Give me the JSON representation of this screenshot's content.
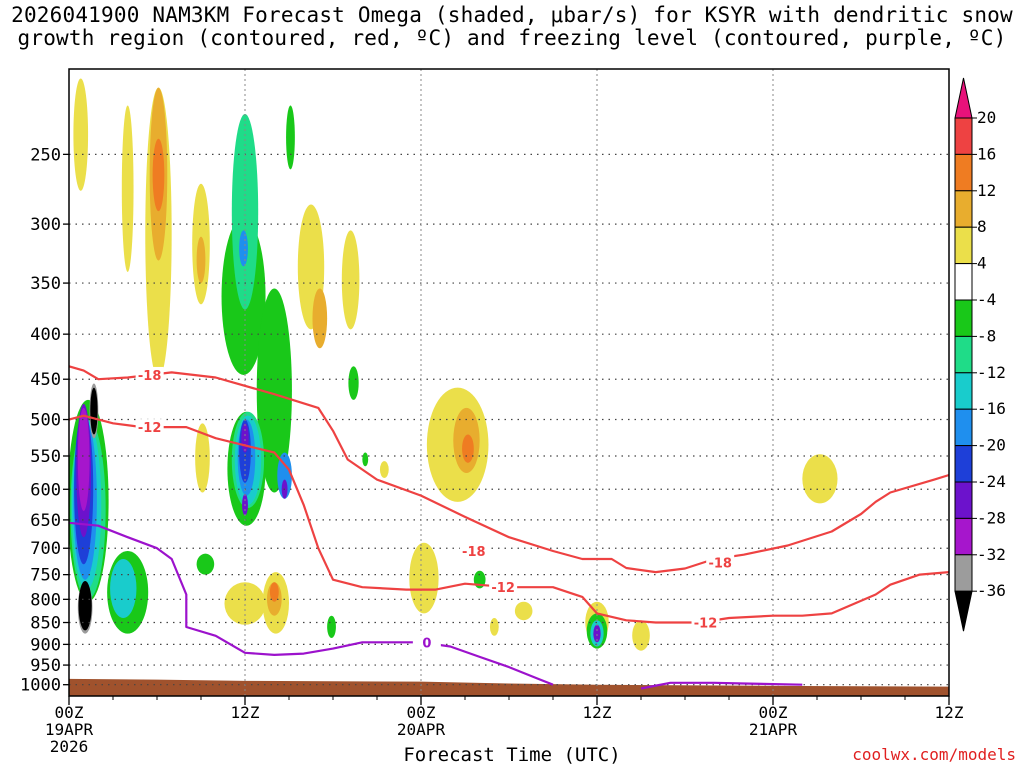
{
  "title": {
    "line1": "2026041900 NAM3KM Forecast Omega (shaded, μbar/s) for KSYR with dendritic snow",
    "line2": "growth region (contoured, red, ºC) and freezing level (contoured, purple, ºC)"
  },
  "credit": "coolwx.com/models",
  "chart_data": {
    "type": "heatmap",
    "xlabel": "Forecast Time (UTC)",
    "ylabel": "",
    "x_axis": {
      "unit": "forecast hours from 2026-04-19 00Z",
      "range": [
        0,
        60
      ],
      "ticks": [
        {
          "h": 0,
          "label1": "00Z",
          "label2": "19APR",
          "label3": "2026"
        },
        {
          "h": 12,
          "label1": "12Z",
          "label2": "",
          "label3": ""
        },
        {
          "h": 24,
          "label1": "00Z",
          "label2": "20APR",
          "label3": ""
        },
        {
          "h": 36,
          "label1": "12Z",
          "label2": "",
          "label3": ""
        },
        {
          "h": 48,
          "label1": "00Z",
          "label2": "21APR",
          "label3": ""
        },
        {
          "h": 60,
          "label1": "12Z",
          "label2": "",
          "label3": ""
        }
      ],
      "minor_grid_hours": [
        3,
        6,
        9,
        15,
        18,
        21,
        27,
        30,
        33,
        39,
        42,
        45,
        51,
        54,
        57
      ]
    },
    "y_axis": {
      "unit": "hPa",
      "scale": "log-pressure",
      "range": [
        1030,
        200
      ],
      "ticks": [
        250,
        300,
        350,
        400,
        450,
        500,
        550,
        600,
        650,
        700,
        750,
        800,
        850,
        900,
        950,
        1000
      ]
    },
    "colorbar": {
      "ticks": [
        "20",
        "16",
        "12",
        "8",
        "4",
        "-4",
        "-8",
        "-12",
        "-16",
        "-20",
        "-24",
        "-28",
        "-32",
        "-36"
      ],
      "colors": [
        "#e8127a",
        "#ee4242",
        "#ef7c22",
        "#e8ad2e",
        "#ebdf4a",
        "#ffffff",
        "#19c819",
        "#1fdc88",
        "#19cccc",
        "#1f8fee",
        "#1e3fd8",
        "#6c12cc",
        "#a616cc",
        "#9c9c9c",
        "#000000"
      ]
    },
    "omega_features": [
      {
        "level": "4",
        "color": "#ebdf4a",
        "h": 0.8,
        "p": 240,
        "rx": 0.5,
        "rp": 70
      },
      {
        "level": "4",
        "color": "#ebdf4a",
        "h": 4.0,
        "p": 280,
        "rx": 0.4,
        "rp": 120
      },
      {
        "level": "4",
        "color": "#ebdf4a",
        "h": 6.1,
        "p": 330,
        "rx": 0.9,
        "rp": 240
      },
      {
        "level": "8",
        "color": "#e8ad2e",
        "h": 6.1,
        "p": 270,
        "rx": 0.6,
        "rp": 120
      },
      {
        "level": "12",
        "color": "#ef7c22",
        "h": 6.1,
        "p": 265,
        "rx": 0.4,
        "rp": 50
      },
      {
        "level": "4",
        "color": "#ebdf4a",
        "h": 9.0,
        "p": 320,
        "rx": 0.6,
        "rp": 100
      },
      {
        "level": "8",
        "color": "#e8ad2e",
        "h": 9.0,
        "p": 330,
        "rx": 0.3,
        "rp": 40
      },
      {
        "level": "4",
        "color": "#ebdf4a",
        "h": 9.1,
        "p": 555,
        "rx": 0.5,
        "rp": 100
      },
      {
        "level": "4",
        "color": "#ebdf4a",
        "h": 16.5,
        "p": 340,
        "rx": 0.9,
        "rp": 110
      },
      {
        "level": "8",
        "color": "#e8ad2e",
        "h": 17.1,
        "p": 385,
        "rx": 0.5,
        "rp": 60
      },
      {
        "level": "4",
        "color": "#ebdf4a",
        "h": 19.2,
        "p": 350,
        "rx": 0.6,
        "rp": 90
      },
      {
        "level": "-4",
        "color": "#19c819",
        "h": 15.1,
        "p": 240,
        "rx": 0.3,
        "rp": 40
      },
      {
        "level": "-4",
        "color": "#19c819",
        "h": 11.9,
        "p": 370,
        "rx": 1.5,
        "rp": 150
      },
      {
        "level": "-4",
        "color": "#19c819",
        "h": 14.0,
        "p": 480,
        "rx": 1.2,
        "rp": 250
      },
      {
        "level": "-8",
        "color": "#1fdc88",
        "h": 12.0,
        "p": 300,
        "rx": 0.9,
        "rp": 150
      },
      {
        "level": "-16",
        "color": "#1f8fee",
        "h": 11.9,
        "p": 320,
        "rx": 0.3,
        "rp": 30
      },
      {
        "level": "-4",
        "color": "#19c819",
        "h": 12.1,
        "p": 575,
        "rx": 1.3,
        "rp": 170
      },
      {
        "level": "-8",
        "color": "#1fdc88",
        "h": 12.2,
        "p": 560,
        "rx": 1.1,
        "rp": 140
      },
      {
        "level": "-12",
        "color": "#19cccc",
        "h": 12.2,
        "p": 560,
        "rx": 0.9,
        "rp": 130
      },
      {
        "level": "-16",
        "color": "#1f8fee",
        "h": 12.1,
        "p": 555,
        "rx": 0.6,
        "rp": 110
      },
      {
        "level": "-20",
        "color": "#1e3fd8",
        "h": 12.0,
        "p": 545,
        "rx": 0.4,
        "rp": 90
      },
      {
        "level": "-24",
        "color": "#6c12cc",
        "h": 12.0,
        "p": 525,
        "rx": 0.25,
        "rp": 40
      },
      {
        "level": "-24",
        "color": "#6c12cc",
        "h": 12.0,
        "p": 625,
        "rx": 0.2,
        "rp": 35
      },
      {
        "level": "-16",
        "color": "#1f8fee",
        "h": 14.7,
        "p": 580,
        "rx": 0.5,
        "rp": 70
      },
      {
        "level": "-24",
        "color": "#6c12cc",
        "h": 14.7,
        "p": 600,
        "rx": 0.2,
        "rp": 30
      },
      {
        "level": "-4",
        "color": "#19c819",
        "h": 1.3,
        "p": 640,
        "rx": 1.4,
        "rp": 330
      },
      {
        "level": "-8",
        "color": "#1fdc88",
        "h": 1.3,
        "p": 650,
        "rx": 1.2,
        "rp": 300
      },
      {
        "level": "-12",
        "color": "#19cccc",
        "h": 1.2,
        "p": 640,
        "rx": 1.0,
        "rp": 280
      },
      {
        "level": "-16",
        "color": "#1f8fee",
        "h": 1.1,
        "p": 630,
        "rx": 0.8,
        "rp": 260
      },
      {
        "level": "-20",
        "color": "#1e3fd8",
        "h": 1.0,
        "p": 610,
        "rx": 0.65,
        "rp": 240
      },
      {
        "level": "-24",
        "color": "#6c12cc",
        "h": 1.0,
        "p": 580,
        "rx": 0.5,
        "rp": 200
      },
      {
        "level": "-28",
        "color": "#a616cc",
        "h": 1.0,
        "p": 560,
        "rx": 0.4,
        "rp": 150
      },
      {
        "level": "-32",
        "color": "#9c9c9c",
        "h": 1.7,
        "p": 490,
        "rx": 0.3,
        "rp": 70
      },
      {
        "level": "-36",
        "color": "#000000",
        "h": 1.7,
        "p": 490,
        "rx": 0.25,
        "rp": 60
      },
      {
        "level": "-32",
        "color": "#9c9c9c",
        "h": 1.1,
        "p": 820,
        "rx": 0.5,
        "rp": 110
      },
      {
        "level": "-36",
        "color": "#000000",
        "h": 1.1,
        "p": 815,
        "rx": 0.45,
        "rp": 105
      },
      {
        "level": "-4",
        "color": "#19c819",
        "h": 4.0,
        "p": 790,
        "rx": 1.4,
        "rp": 170
      },
      {
        "level": "-12",
        "color": "#19cccc",
        "h": 3.7,
        "p": 780,
        "rx": 0.9,
        "rp": 120
      },
      {
        "level": "-4",
        "color": "#19c819",
        "h": 9.3,
        "p": 730,
        "rx": 0.6,
        "rp": 40
      },
      {
        "level": "4",
        "color": "#ebdf4a",
        "h": 12.0,
        "p": 810,
        "rx": 1.4,
        "rp": 90
      },
      {
        "level": "4",
        "color": "#ebdf4a",
        "h": 14.1,
        "p": 810,
        "rx": 0.9,
        "rp": 130
      },
      {
        "level": "8",
        "color": "#e8ad2e",
        "h": 14.0,
        "p": 800,
        "rx": 0.5,
        "rp": 70
      },
      {
        "level": "12",
        "color": "#ef7c22",
        "h": 14.0,
        "p": 785,
        "rx": 0.3,
        "rp": 40
      },
      {
        "level": "-4",
        "color": "#19c819",
        "h": 17.9,
        "p": 860,
        "rx": 0.3,
        "rp": 50
      },
      {
        "level": "-4",
        "color": "#19c819",
        "h": 19.4,
        "p": 455,
        "rx": 0.35,
        "rp": 40
      },
      {
        "level": "-4",
        "color": "#19c819",
        "h": 20.2,
        "p": 555,
        "rx": 0.2,
        "rp": 20
      },
      {
        "level": "4",
        "color": "#ebdf4a",
        "h": 21.5,
        "p": 570,
        "rx": 0.3,
        "rp": 25
      },
      {
        "level": "4",
        "color": "#ebdf4a",
        "h": 26.5,
        "p": 540,
        "rx": 2.1,
        "rp": 160
      },
      {
        "level": "8",
        "color": "#e8ad2e",
        "h": 27.1,
        "p": 530,
        "rx": 0.9,
        "rp": 90
      },
      {
        "level": "12",
        "color": "#ef7c22",
        "h": 27.2,
        "p": 540,
        "rx": 0.4,
        "rp": 40
      },
      {
        "level": "4",
        "color": "#ebdf4a",
        "h": 24.2,
        "p": 760,
        "rx": 1.0,
        "rp": 140
      },
      {
        "level": "-4",
        "color": "#19c819",
        "h": 28.0,
        "p": 760,
        "rx": 0.4,
        "rp": 35
      },
      {
        "level": "4",
        "color": "#ebdf4a",
        "h": 29.0,
        "p": 860,
        "rx": 0.3,
        "rp": 40
      },
      {
        "level": "4",
        "color": "#ebdf4a",
        "h": 31.0,
        "p": 825,
        "rx": 0.6,
        "rp": 40
      },
      {
        "level": "4",
        "color": "#ebdf4a",
        "h": 36.0,
        "p": 850,
        "rx": 0.8,
        "rp": 90
      },
      {
        "level": "-4",
        "color": "#19c819",
        "h": 36.0,
        "p": 870,
        "rx": 0.7,
        "rp": 80
      },
      {
        "level": "-12",
        "color": "#19cccc",
        "h": 36.0,
        "p": 875,
        "rx": 0.45,
        "rp": 60
      },
      {
        "level": "-24",
        "color": "#6c12cc",
        "h": 36.0,
        "p": 875,
        "rx": 0.25,
        "rp": 40
      },
      {
        "level": "4",
        "color": "#ebdf4a",
        "h": 39.0,
        "p": 880,
        "rx": 0.6,
        "rp": 70
      },
      {
        "level": "4",
        "color": "#ebdf4a",
        "h": 51.2,
        "p": 585,
        "rx": 1.2,
        "rp": 75
      }
    ],
    "series": [
      {
        "name": "-18",
        "color": "#ee4242",
        "points": [
          [
            0,
            435
          ],
          [
            1,
            440
          ],
          [
            2,
            450
          ],
          [
            4,
            448
          ],
          [
            7,
            442
          ],
          [
            10,
            448
          ],
          [
            14,
            468
          ],
          [
            17,
            485
          ],
          [
            18,
            515
          ],
          [
            19,
            555
          ],
          [
            21,
            585
          ],
          [
            24,
            610
          ],
          [
            27,
            645
          ],
          [
            30,
            680
          ],
          [
            33,
            705
          ],
          [
            35,
            720
          ],
          [
            37,
            720
          ],
          [
            38,
            737
          ],
          [
            40,
            745
          ],
          [
            42,
            738
          ],
          [
            44,
            720
          ],
          [
            46,
            712
          ],
          [
            49,
            695
          ],
          [
            52,
            670
          ],
          [
            54,
            640
          ],
          [
            55,
            620
          ],
          [
            56,
            605
          ],
          [
            59,
            585
          ],
          [
            60,
            578
          ]
        ]
      },
      {
        "name": "-12",
        "color": "#ee4242",
        "points": [
          [
            0,
            500
          ],
          [
            1,
            495
          ],
          [
            3,
            505
          ],
          [
            5,
            510
          ],
          [
            8,
            510
          ],
          [
            10,
            525
          ],
          [
            12,
            535
          ],
          [
            14,
            545
          ],
          [
            15,
            570
          ],
          [
            16,
            625
          ],
          [
            17,
            700
          ],
          [
            18,
            760
          ],
          [
            20,
            775
          ],
          [
            23,
            780
          ],
          [
            25,
            780
          ],
          [
            27,
            768
          ],
          [
            30,
            775
          ],
          [
            33,
            775
          ],
          [
            35,
            795
          ],
          [
            36,
            830
          ],
          [
            38,
            845
          ],
          [
            40,
            850
          ],
          [
            43,
            850
          ],
          [
            45,
            840
          ],
          [
            48,
            835
          ],
          [
            50,
            835
          ],
          [
            52,
            830
          ],
          [
            55,
            790
          ],
          [
            56,
            770
          ],
          [
            58,
            750
          ],
          [
            60,
            745
          ]
        ]
      },
      {
        "name": "0",
        "color": "#9c12cc",
        "points": [
          [
            0,
            655
          ],
          [
            2,
            660
          ],
          [
            4,
            680
          ],
          [
            6,
            700
          ],
          [
            7,
            720
          ],
          [
            8,
            790
          ],
          [
            8,
            860
          ],
          [
            10,
            880
          ],
          [
            12,
            920
          ],
          [
            14,
            925
          ],
          [
            16,
            922
          ],
          [
            18,
            910
          ],
          [
            20,
            895
          ],
          [
            22,
            895
          ],
          [
            24,
            895
          ],
          [
            26,
            905
          ],
          [
            28,
            930
          ],
          [
            30,
            955
          ],
          [
            32,
            985
          ],
          [
            33,
            1000
          ]
        ]
      },
      {
        "name": "0",
        "color": "#9c12cc",
        "points": [
          [
            39,
            1010
          ],
          [
            41,
            995
          ],
          [
            44,
            995
          ],
          [
            46,
            997
          ],
          [
            50,
            1000
          ]
        ]
      }
    ],
    "contour_labels": [
      {
        "text": "-18",
        "h": 5.5,
        "p": 445,
        "color": "#ee4242"
      },
      {
        "text": "-12",
        "h": 5.5,
        "p": 510,
        "color": "#ee4242"
      },
      {
        "text": "-18",
        "h": 27.6,
        "p": 705,
        "color": "#ee4242"
      },
      {
        "text": "-12",
        "h": 29.6,
        "p": 775,
        "color": "#ee4242"
      },
      {
        "text": "-18",
        "h": 44.4,
        "p": 727,
        "color": "#ee4242"
      },
      {
        "text": "-12",
        "h": 43.4,
        "p": 850,
        "color": "#ee4242"
      },
      {
        "text": "0",
        "h": 24.4,
        "p": 895,
        "color": "#9c12cc"
      }
    ],
    "terrain": {
      "color": "#a0522d",
      "points": [
        [
          0,
          985
        ],
        [
          6,
          987
        ],
        [
          12,
          990
        ],
        [
          24,
          992
        ],
        [
          30,
          997
        ],
        [
          36,
          1000
        ],
        [
          48,
          1003
        ],
        [
          60,
          1005
        ]
      ]
    }
  }
}
